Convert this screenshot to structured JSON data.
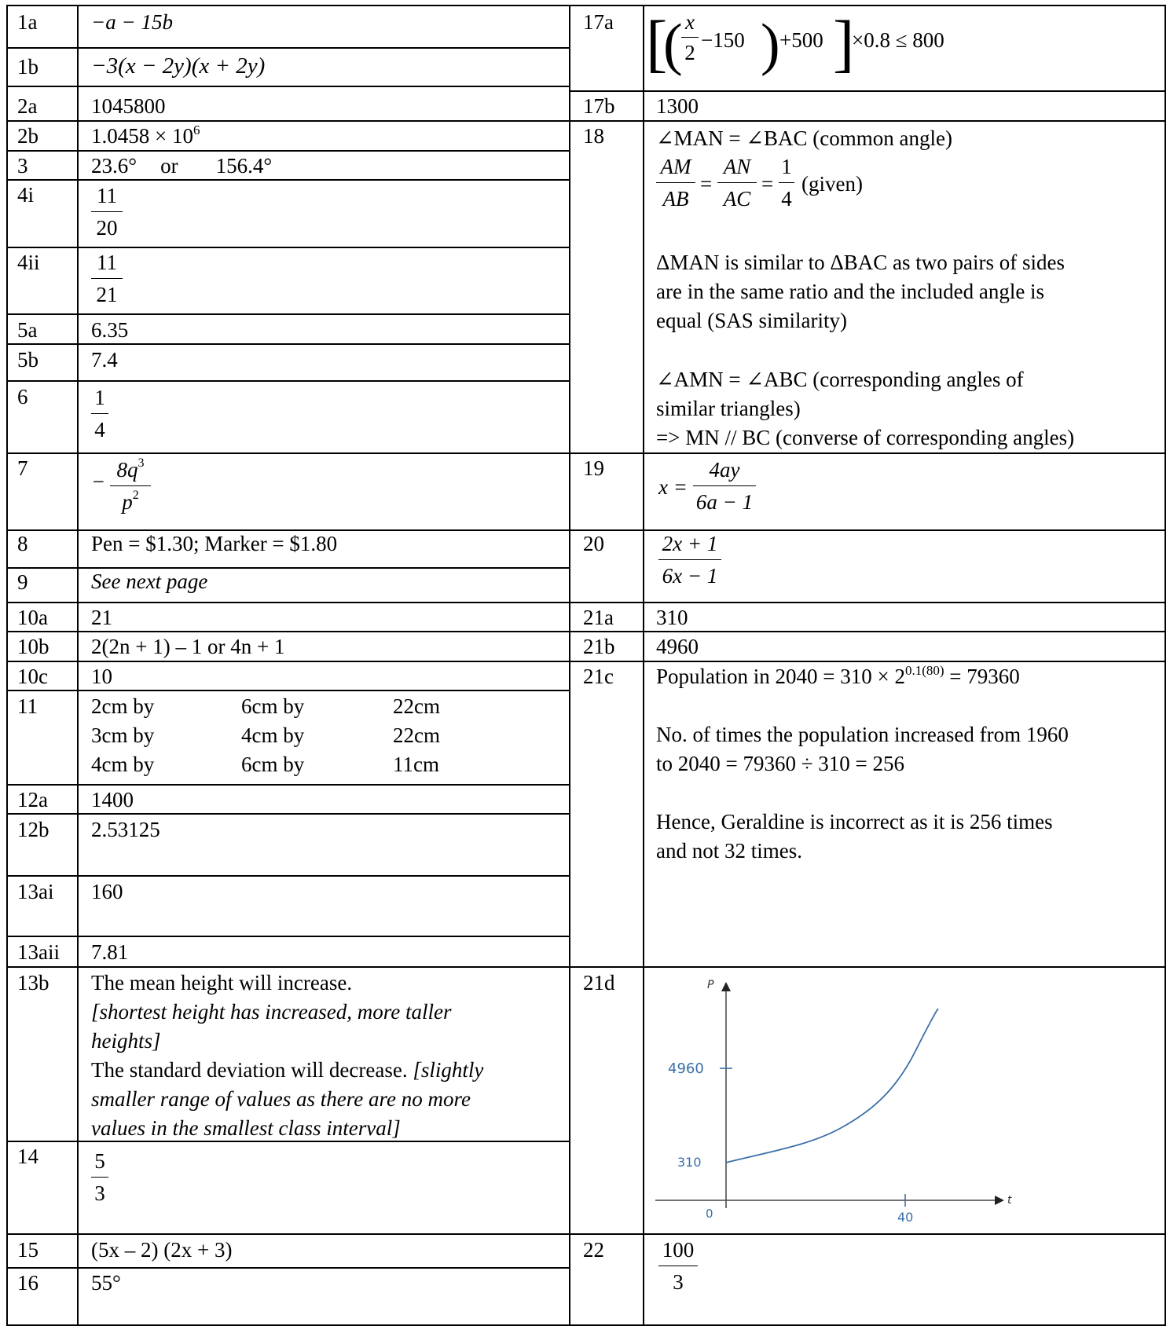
{
  "left_rows": [
    {
      "q": "1a"
    },
    {
      "q": "1b"
    },
    {
      "q": "2a",
      "a": "1045800"
    },
    {
      "q": "2b"
    },
    {
      "q": "3"
    },
    {
      "q": "4i"
    },
    {
      "q": "4ii"
    },
    {
      "q": "5a",
      "a": "6.35"
    },
    {
      "q": "5b",
      "a": "7.4"
    },
    {
      "q": "6"
    },
    {
      "q": "7"
    },
    {
      "q": "8",
      "a": "Pen = $1.30;  Marker = $1.80"
    },
    {
      "q": "9",
      "a": "See next page"
    },
    {
      "q": "10a",
      "a": "21"
    },
    {
      "q": "10b",
      "a": "2(2n + 1) – 1 or 4n + 1"
    },
    {
      "q": "10c",
      "a": "10"
    },
    {
      "q": "11"
    },
    {
      "q": "12a",
      "a": "1400"
    },
    {
      "q": "12b",
      "a": "2.53125"
    },
    {
      "q": "13ai",
      "a": "160"
    },
    {
      "q": "13aii",
      "a": "7.81"
    },
    {
      "q": "13b"
    },
    {
      "q": "14"
    },
    {
      "q": "15"
    },
    {
      "q": "16",
      "a": "55°"
    }
  ],
  "right_rows": [
    {
      "q": "17a"
    },
    {
      "q": "17b",
      "a": "1300"
    },
    {
      "q": "18"
    },
    {
      "q": "19"
    },
    {
      "q": "20"
    },
    {
      "q": "21a",
      "a": "310"
    },
    {
      "q": "21b",
      "a": "4960"
    },
    {
      "q": "21c"
    },
    {
      "q": "21d"
    },
    {
      "q": "22"
    }
  ],
  "a1a": "−a − 15b",
  "a1b": "−3(x − 2y)(x + 2y)",
  "a2b_base": "1.0458 × 10",
  "a2b_exp": "6",
  "a3_1": "23.6°",
  "a3_or": "or",
  "a3_2": "156.4°",
  "a4i_num": "11",
  "a4i_den": "20",
  "a4ii_num": "11",
  "a4ii_den": "21",
  "a6_num": "1",
  "a6_den": "4",
  "a7_sign": "−",
  "a7_num": "8q",
  "a7_num_exp": "3",
  "a7_den": "p",
  "a7_den_exp": "2",
  "a11": [
    [
      "2cm  by",
      "6cm  by",
      "22cm"
    ],
    [
      "3cm  by",
      "4cm  by",
      "22cm"
    ],
    [
      "4cm  by",
      "6cm  by",
      "11cm"
    ]
  ],
  "a13b": {
    "line1": "The mean height will increase.",
    "line2": "[shortest height has increased, more taller",
    "line3": "heights]",
    "line4a": "The standard deviation will decrease. ",
    "line4b": "[slightly",
    "line5": "smaller range of values as there are no more",
    "line6": "values in the smallest class interval]"
  },
  "a14_num": "5",
  "a14_den": "3",
  "a15": "(5x – 2) (2x + 3)",
  "a17a": {
    "x": "x",
    "two": "2",
    "minus150": "−150",
    "plus500": "+500",
    "tail": "×0.8 ≤ 800"
  },
  "a18": {
    "l1": "∠MAN = ∠BAC (common angle)",
    "AM": "AM",
    "AB": "AB",
    "AN": "AN",
    "AC": "AC",
    "one": "1",
    "four": "4",
    "given": "(given)",
    "p1": "ΔMAN is similar to ΔBAC as two pairs of sides",
    "p2": "are in the same ratio and the included angle is",
    "p3": "equal (SAS similarity)",
    "p4": "∠AMN = ∠ABC (corresponding angles of",
    "p5": "similar triangles)",
    "p6": "=> MN // BC (converse of corresponding angles)"
  },
  "a19": {
    "lhs": "x =",
    "num": "4ay",
    "den": "6a − 1"
  },
  "a20": {
    "num": "2x + 1",
    "den": "6x − 1"
  },
  "a21c": {
    "l1a": "Population in 2040 = 310 × 2",
    "l1exp": "0.1(80)",
    "l1b": " = 79360",
    "l2": "No. of times the population increased from 1960",
    "l3": "to 2040 = 79360 ÷ 310 = 256",
    "l4": "Hence, Geraldine is incorrect as it is 256 times",
    "l5": "and not 32 times."
  },
  "graph": {
    "y_axis": "P",
    "x_axis": "t",
    "origin": "0",
    "y_high": "4960",
    "y_low": "310",
    "x_tick": "40",
    "curve_color": "#3a6fa8"
  },
  "a22": {
    "num": "100",
    "den": "3"
  }
}
